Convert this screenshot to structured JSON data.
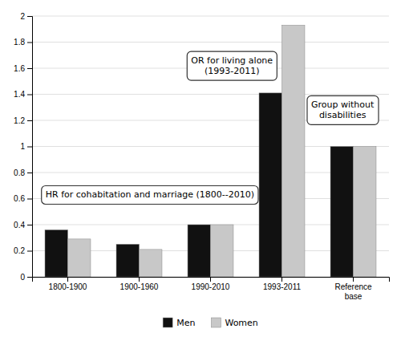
{
  "chart_data": {
    "type": "bar",
    "categories": [
      "1800-1900",
      "1900-1960",
      "1990-2010",
      "1993-2011",
      "Reference\nbase"
    ],
    "series": [
      {
        "name": "Men",
        "color": "#111111",
        "values": [
          0.36,
          0.25,
          0.4,
          1.41,
          1.0
        ]
      },
      {
        "name": "Women",
        "color": "#c8c8c8",
        "values": [
          0.29,
          0.21,
          0.4,
          1.93,
          1.0
        ]
      }
    ],
    "ylim": [
      0,
      2.0
    ],
    "yticks": [
      0,
      0.2,
      0.4,
      0.6,
      0.8,
      1.0,
      1.2,
      1.4,
      1.6,
      1.8,
      2.0
    ],
    "grid": true,
    "legend": "bottom",
    "annotations": [
      "OR for living alone\n(1993-2011)",
      "HR for cohabitation and marriage (1800--2010)",
      "Group without\ndisabilities"
    ]
  }
}
